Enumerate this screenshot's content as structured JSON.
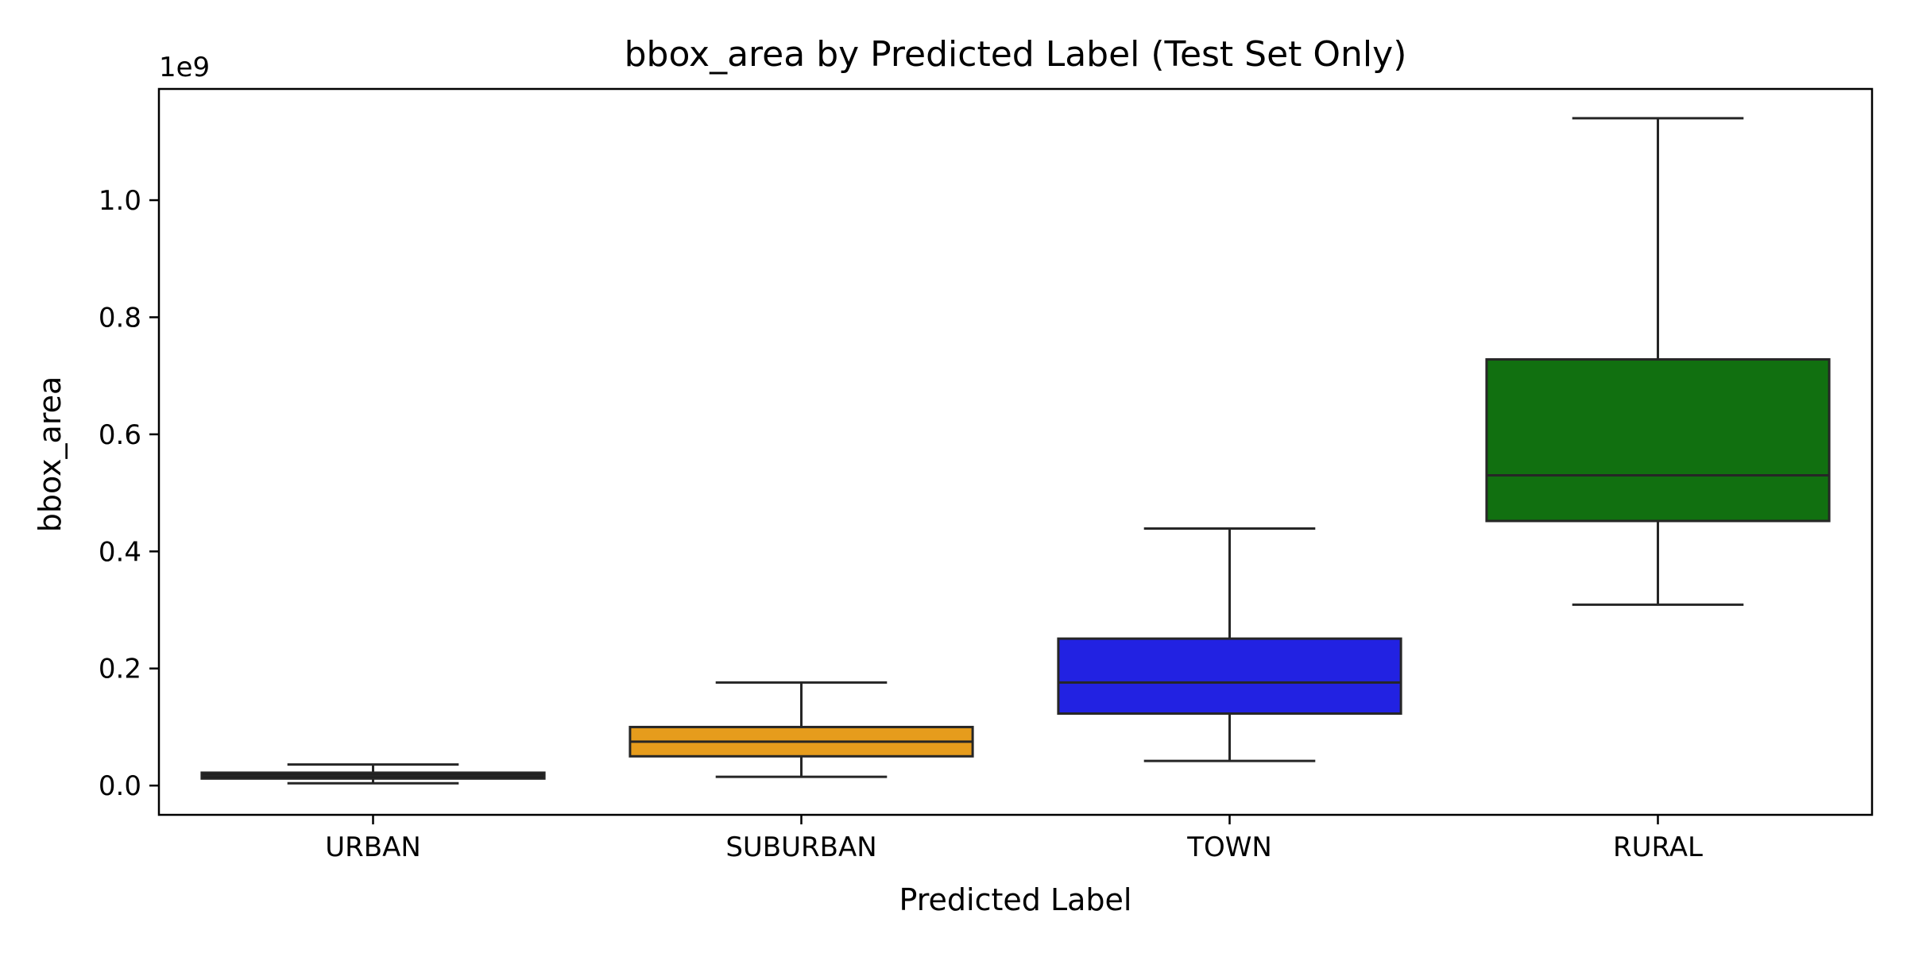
{
  "chart_data": {
    "type": "box",
    "title": "bbox_area by Predicted Label (Test Set Only)",
    "xlabel": "Predicted Label",
    "ylabel": "bbox_area",
    "y_offset_label": "1e9",
    "y_scale_multiplier": 1000000000,
    "ylim": [
      -0.05,
      1.19
    ],
    "yticks": [
      0.0,
      0.2,
      0.4,
      0.6,
      0.8,
      1.0
    ],
    "ytick_labels": [
      "0.0",
      "0.2",
      "0.4",
      "0.6",
      "0.8",
      "1.0"
    ],
    "grid": false,
    "categories": [
      "URBAN",
      "SUBURBAN",
      "TOWN",
      "RURAL"
    ],
    "colors": [
      "#1a1a1a",
      "#e69c1c",
      "#2222e2",
      "#117010"
    ],
    "boxes": [
      {
        "category": "URBAN",
        "whisker_low": 0.004,
        "q1": 0.012,
        "median": 0.017,
        "q3": 0.022,
        "whisker_high": 0.036
      },
      {
        "category": "SUBURBAN",
        "whisker_low": 0.015,
        "q1": 0.05,
        "median": 0.075,
        "q3": 0.1,
        "whisker_high": 0.176
      },
      {
        "category": "TOWN",
        "whisker_low": 0.042,
        "q1": 0.123,
        "median": 0.176,
        "q3": 0.251,
        "whisker_high": 0.439
      },
      {
        "category": "RURAL",
        "whisker_low": 0.309,
        "q1": 0.452,
        "median": 0.53,
        "q3": 0.728,
        "whisker_high": 1.14
      }
    ]
  }
}
